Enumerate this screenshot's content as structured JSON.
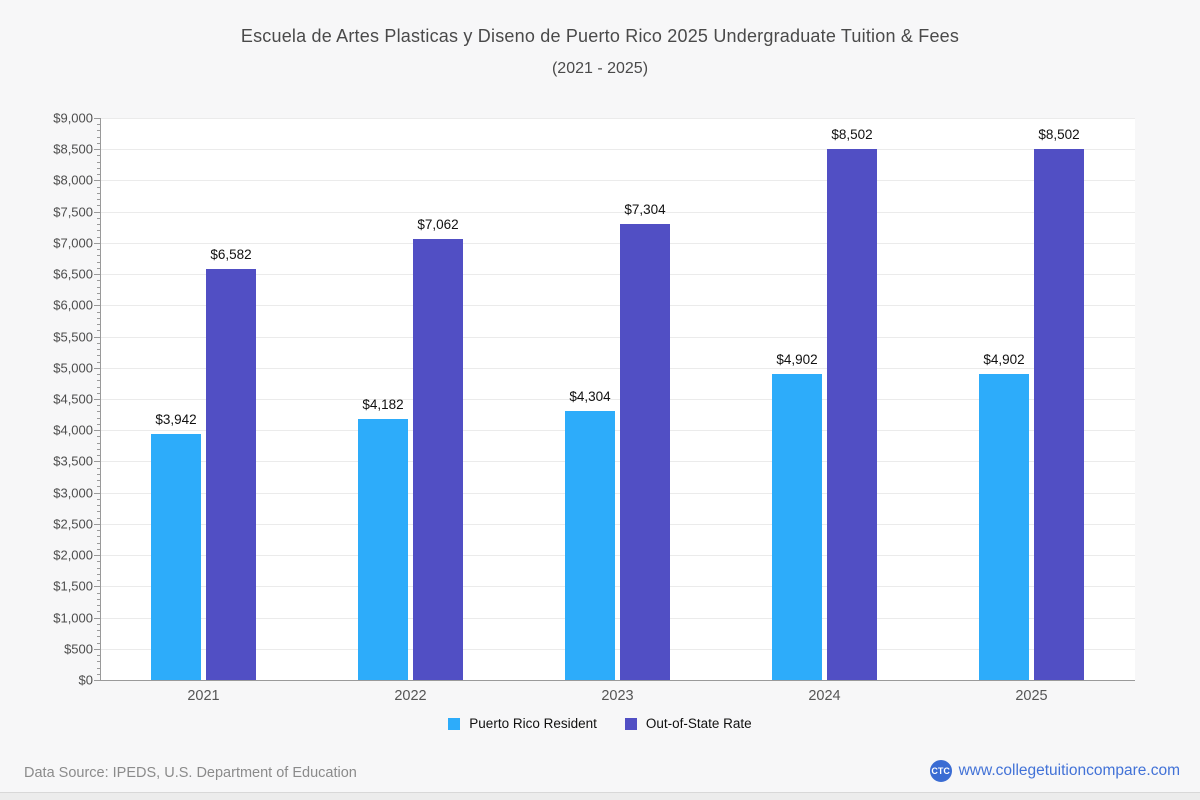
{
  "page": {
    "background": "#f7f7f8",
    "plot_background": "#ffffff"
  },
  "header": {
    "title": "Escuela de Artes Plasticas y Diseno de Puerto Rico 2025 Undergraduate Tuition & Fees",
    "subtitle": "(2021 - 2025)"
  },
  "chart_data": {
    "type": "bar",
    "title": "Escuela de Artes Plasticas y Diseno de Puerto Rico 2025 Undergraduate Tuition & Fees (2021 - 2025)",
    "categories": [
      "2021",
      "2022",
      "2023",
      "2024",
      "2025"
    ],
    "series": [
      {
        "name": "Puerto Rico Resident",
        "color": "#2dacfa",
        "values": [
          3942,
          4182,
          4304,
          4902,
          4902
        ],
        "labels": [
          "$3,942",
          "$4,182",
          "$4,304",
          "$4,902",
          "$4,902"
        ]
      },
      {
        "name": "Out-of-State Rate",
        "color": "#514fc4",
        "values": [
          6582,
          7062,
          7304,
          8502,
          8502
        ],
        "labels": [
          "$6,582",
          "$7,062",
          "$7,304",
          "$8,502",
          "$8,502"
        ]
      }
    ],
    "xlabel": "",
    "ylabel": "",
    "ylim": [
      0,
      9000
    ],
    "ytick_step": 500,
    "yminor_step": 100,
    "ytick_labels": [
      "$0",
      "$500",
      "$1,000",
      "$1,500",
      "$2,000",
      "$2,500",
      "$3,000",
      "$3,500",
      "$4,000",
      "$4,500",
      "$5,000",
      "$5,500",
      "$6,000",
      "$6,500",
      "$7,000",
      "$7,500",
      "$8,000",
      "$8,500",
      "$9,000"
    ],
    "grid": true,
    "legend_position": "bottom"
  },
  "legend": {
    "items": [
      {
        "label": "Puerto Rico Resident",
        "color": "#2dacfa"
      },
      {
        "label": "Out-of-State Rate",
        "color": "#514fc4"
      }
    ]
  },
  "footer": {
    "data_source": "Data Source: IPEDS, U.S. Department of Education",
    "logo_text": "CTC",
    "website": "www.collegetuitioncompare.com",
    "link_color": "#4272d7",
    "logo_color": "#3a6cd3"
  }
}
